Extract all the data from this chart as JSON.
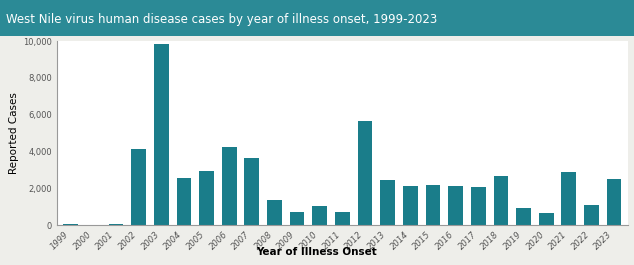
{
  "years": [
    1999,
    2000,
    2001,
    2002,
    2003,
    2004,
    2005,
    2006,
    2007,
    2008,
    2009,
    2010,
    2011,
    2012,
    2013,
    2014,
    2015,
    2016,
    2017,
    2018,
    2019,
    2020,
    2021,
    2022,
    2023
  ],
  "values": [
    62,
    21,
    66,
    4156,
    9862,
    2539,
    2944,
    4269,
    3630,
    1356,
    720,
    1021,
    712,
    5674,
    2469,
    2122,
    2175,
    2149,
    2097,
    2647,
    958,
    654,
    2900,
    1126,
    2500
  ],
  "bar_color": "#1a7d8a",
  "title": "West Nile virus human disease cases by year of illness onset, 1999-2023",
  "title_bg_color": "#2b8a96",
  "title_text_color": "#ffffff",
  "ylabel": "Reported Cases",
  "xlabel": "Year of Illness Onset",
  "ylim": [
    0,
    10000
  ],
  "yticks": [
    0,
    2000,
    4000,
    6000,
    8000,
    10000
  ],
  "ytick_labels": [
    "0",
    "2,000",
    "4,000",
    "6,000",
    "8,000",
    "10,000"
  ],
  "outer_bg_color": "#eeeeea",
  "plot_bg_color": "#ffffff",
  "title_fontsize": 8.5,
  "axis_label_fontsize": 7.5,
  "tick_fontsize": 6.0
}
